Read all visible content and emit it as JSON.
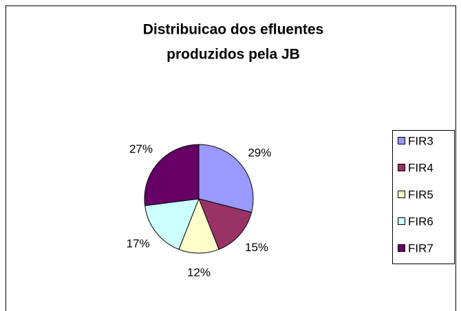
{
  "chart_data": {
    "type": "pie",
    "title": [
      "Distribuicao dos efluentes",
      "produzidos pela JB"
    ],
    "categories": [
      "FIR3",
      "FIR4",
      "FIR5",
      "FIR6",
      "FIR7"
    ],
    "values": [
      29,
      15,
      12,
      17,
      27
    ],
    "value_labels": [
      "29%",
      "15%",
      "12%",
      "17%",
      "27%"
    ],
    "colors": [
      "#9999ff",
      "#993366",
      "#ffffcc",
      "#ccffff",
      "#660066"
    ],
    "legend": "right"
  }
}
